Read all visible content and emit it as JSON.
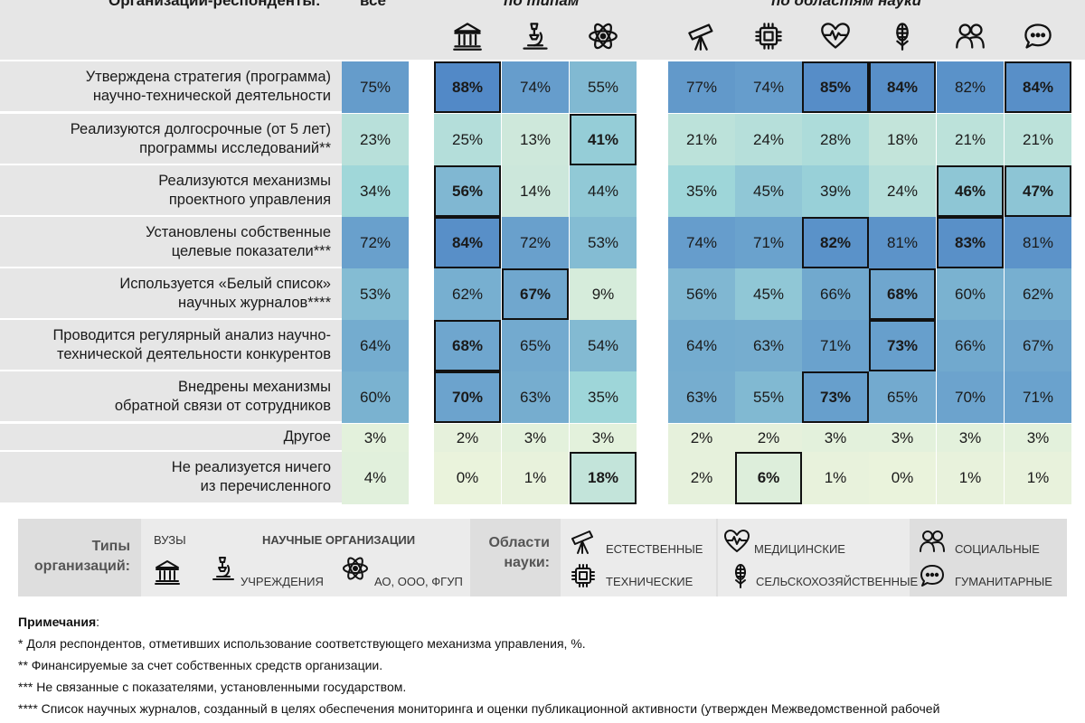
{
  "header": {
    "respondents_label": "Организации-респонденты:",
    "all_label": "все",
    "by_type_label": "по типам",
    "by_field_label": "по областям науки"
  },
  "columns": [
    {
      "key": "all",
      "icon": ""
    },
    {
      "key": "vuz",
      "icon": "university-icon"
    },
    {
      "key": "inst",
      "icon": "microscope-icon"
    },
    {
      "key": "ao",
      "icon": "atom-icon"
    },
    {
      "key": "natural",
      "icon": "telescope-icon"
    },
    {
      "key": "tech",
      "icon": "chip-icon"
    },
    {
      "key": "med",
      "icon": "heart-pulse-icon"
    },
    {
      "key": "agri",
      "icon": "wheat-icon"
    },
    {
      "key": "social",
      "icon": "people-icon"
    },
    {
      "key": "hum",
      "icon": "chat-icon"
    }
  ],
  "chart_data": {
    "type": "heatmap",
    "unit": "%",
    "column_groups": [
      "все",
      "по типам",
      "по областям науки"
    ],
    "columns": [
      "все",
      "ВУЗЫ",
      "УЧРЕЖДЕНИЯ",
      "АО, ООО, ФГУП",
      "ЕСТЕСТВЕННЫЕ",
      "ТЕХНИЧЕСКИЕ",
      "МЕДИЦИНСКИЕ",
      "СЕЛЬСКОХОЗЯЙСТВЕННЫЕ",
      "СОЦИАЛЬНЫЕ",
      "ГУМАНИТАРНЫЕ"
    ],
    "rows": [
      {
        "label": "Утверждена стратегия (программа)\nнаучно-технической деятельности",
        "values": [
          75,
          88,
          74,
          55,
          77,
          74,
          85,
          84,
          82,
          84
        ],
        "highlight": [
          1,
          6,
          7,
          9
        ]
      },
      {
        "label": "Реализуются долгосрочные (от 5 лет)\nпрограммы исследований**",
        "values": [
          23,
          25,
          13,
          41,
          21,
          24,
          28,
          18,
          21,
          21
        ],
        "highlight": [
          3
        ]
      },
      {
        "label": "Реализуются механизмы\nпроектного управления",
        "values": [
          34,
          56,
          14,
          44,
          35,
          45,
          39,
          24,
          46,
          47
        ],
        "highlight": [
          1,
          8,
          9
        ]
      },
      {
        "label": "Установлены собственные\nцелевые показатели***",
        "values": [
          72,
          84,
          72,
          53,
          74,
          71,
          82,
          81,
          83,
          81
        ],
        "highlight": [
          1,
          6,
          8
        ]
      },
      {
        "label": "Используется «Белый список»\nнаучных журналов****",
        "values": [
          53,
          62,
          67,
          9,
          56,
          45,
          66,
          68,
          60,
          62
        ],
        "highlight": [
          2,
          7
        ]
      },
      {
        "label": "Проводится регулярный анализ научно-\nтехнической деятельности конкурентов",
        "values": [
          64,
          68,
          65,
          54,
          64,
          63,
          71,
          73,
          66,
          67
        ],
        "highlight": [
          1,
          7
        ]
      },
      {
        "label": "Внедрены механизмы\nобратной связи от сотрудников",
        "values": [
          60,
          70,
          63,
          35,
          63,
          55,
          73,
          65,
          70,
          71
        ],
        "highlight": [
          1,
          6
        ]
      },
      {
        "label": "Другое",
        "values": [
          3,
          2,
          3,
          3,
          2,
          2,
          3,
          3,
          3,
          3
        ],
        "highlight": []
      },
      {
        "label": "Не реализуется ничего\nиз перечисленного",
        "values": [
          4,
          0,
          1,
          18,
          2,
          6,
          1,
          0,
          1,
          1
        ],
        "highlight": [
          3,
          5
        ]
      }
    ],
    "color_scale": {
      "low": "#eaf3dc",
      "mid": "#9ed6d9",
      "high": "#4f86c6"
    }
  },
  "legend": {
    "types_title": "Типы\nорганизаций:",
    "vuz_label": "ВУЗЫ",
    "sci_org_label": "НАУЧНЫЕ ОРГАНИЗАЦИИ",
    "inst_label": "УЧРЕЖДЕНИЯ",
    "ao_label": "АО, ООО, ФГУП",
    "fields_title": "Области\nнауки:",
    "natural_label": "ЕСТЕСТВЕННЫЕ",
    "tech_label": "ТЕХНИЧЕСКИЕ",
    "med_label": "МЕДИЦИНСКИЕ",
    "agri_label": "СЕЛЬСКОХОЗЯЙСТВЕННЫЕ",
    "social_label": "СОЦИАЛЬНЫЕ",
    "hum_label": "ГУМАНИТАРНЫЕ"
  },
  "notes": {
    "heading": "Примечания",
    "n1": "* Доля респондентов, отметивших использование соответствующего механизма управления, %.",
    "n2": "** Финансируемые за счет собственных средств организации.",
    "n3": "*** Не связанные с показателями, установленными государством.",
    "n4": "**** Список научных журналов, созданный в целях обеспечения мониторинга и оценки публикационной активности (утвержден Межведомственной рабочей"
  }
}
